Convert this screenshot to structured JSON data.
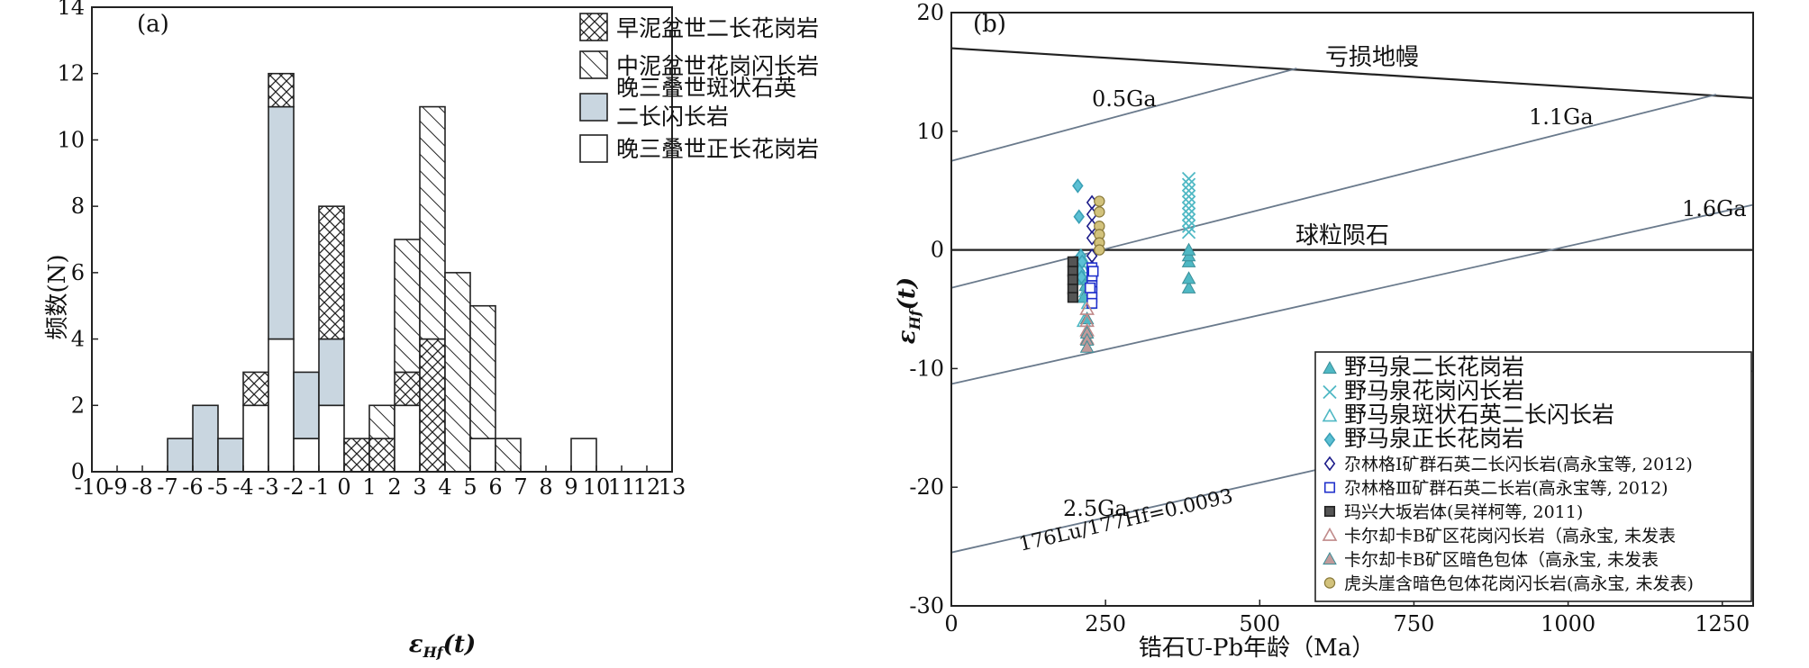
{
  "chart_data": [
    {
      "type": "bar",
      "panel": "(a)",
      "xlabel_main": "ε",
      "xlabel_sub": "Hf",
      "xlabel_suffix": "(t)",
      "ylabel": "频数(N)",
      "xlim": [
        -10,
        13
      ],
      "ylim": [
        0,
        14
      ],
      "x_ticks": [
        -10,
        -9,
        -8,
        -7,
        -6,
        -5,
        -4,
        -3,
        -2,
        -1,
        0,
        1,
        2,
        3,
        4,
        5,
        6,
        7,
        8,
        9,
        10,
        11,
        12,
        13
      ],
      "y_ticks": [
        0,
        2,
        4,
        6,
        8,
        10,
        12,
        14
      ],
      "legend": [
        {
          "label": "早泥盆世二长花岗岩",
          "pattern": "cross"
        },
        {
          "label": "中泥盆世花岗闪长岩",
          "pattern": "hatch"
        },
        {
          "label": "晚三叠世斑状石英",
          "label2": "二长闪长岩",
          "pattern": "fill"
        },
        {
          "label": "晚三叠世正长花岗岩",
          "pattern": "empty"
        }
      ],
      "bars": [
        {
          "x0": -7,
          "x1": -6,
          "y0": 0,
          "y1": 1,
          "pattern": "fill"
        },
        {
          "x0": -6,
          "x1": -5,
          "y0": 0,
          "y1": 2,
          "pattern": "fill"
        },
        {
          "x0": -5,
          "x1": -4,
          "y0": 0,
          "y1": 1,
          "pattern": "fill"
        },
        {
          "x0": -4,
          "x1": -3,
          "y0": 0,
          "y1": 2,
          "pattern": "empty"
        },
        {
          "x0": -4,
          "x1": -3,
          "y0": 2,
          "y1": 3,
          "pattern": "cross"
        },
        {
          "x0": -3,
          "x1": -2,
          "y0": 0,
          "y1": 4,
          "pattern": "empty"
        },
        {
          "x0": -3,
          "x1": -2,
          "y0": 4,
          "y1": 11,
          "pattern": "fill"
        },
        {
          "x0": -3,
          "x1": -2,
          "y0": 11,
          "y1": 12,
          "pattern": "cross"
        },
        {
          "x0": -2,
          "x1": -1,
          "y0": 0,
          "y1": 1,
          "pattern": "empty"
        },
        {
          "x0": -2,
          "x1": -1,
          "y0": 1,
          "y1": 3,
          "pattern": "fill"
        },
        {
          "x0": -1,
          "x1": 0,
          "y0": 0,
          "y1": 2,
          "pattern": "empty"
        },
        {
          "x0": -1,
          "x1": 0,
          "y0": 2,
          "y1": 4,
          "pattern": "fill"
        },
        {
          "x0": -1,
          "x1": 0,
          "y0": 4,
          "y1": 8,
          "pattern": "cross"
        },
        {
          "x0": 0,
          "x1": 1,
          "y0": 0,
          "y1": 1,
          "pattern": "cross"
        },
        {
          "x0": 1,
          "x1": 2,
          "y0": 0,
          "y1": 1,
          "pattern": "cross"
        },
        {
          "x0": 1,
          "x1": 2,
          "y0": 1,
          "y1": 2,
          "pattern": "hatch"
        },
        {
          "x0": 2,
          "x1": 3,
          "y0": 0,
          "y1": 2,
          "pattern": "empty"
        },
        {
          "x0": 2,
          "x1": 3,
          "y0": 2,
          "y1": 3,
          "pattern": "cross"
        },
        {
          "x0": 2,
          "x1": 3,
          "y0": 3,
          "y1": 7,
          "pattern": "hatch"
        },
        {
          "x0": 3,
          "x1": 4,
          "y0": 0,
          "y1": 4,
          "pattern": "cross"
        },
        {
          "x0": 3,
          "x1": 4,
          "y0": 4,
          "y1": 11,
          "pattern": "hatch"
        },
        {
          "x0": 4,
          "x1": 5,
          "y0": 0,
          "y1": 6,
          "pattern": "hatch"
        },
        {
          "x0": 5,
          "x1": 6,
          "y0": 0,
          "y1": 1,
          "pattern": "empty"
        },
        {
          "x0": 5,
          "x1": 6,
          "y0": 1,
          "y1": 5,
          "pattern": "hatch"
        },
        {
          "x0": 6,
          "x1": 7,
          "y0": 0,
          "y1": 1,
          "pattern": "hatch"
        },
        {
          "x0": 9,
          "x1": 10,
          "y0": 0,
          "y1": 1,
          "pattern": "empty"
        }
      ]
    },
    {
      "type": "scatter",
      "panel": "(b)",
      "xlabel": "锆石U-Pb年龄（Ma）",
      "ylabel_main": "ε",
      "ylabel_sub": "Hf",
      "ylabel_suffix": "(t)",
      "xlim": [
        0,
        1300
      ],
      "ylim": [
        -30,
        20
      ],
      "x_ticks": [
        0,
        250,
        500,
        750,
        1000,
        1250
      ],
      "y_ticks": [
        -30,
        -20,
        -10,
        0,
        10,
        20
      ],
      "reference_lines": [
        {
          "label": "亏损地幔",
          "x": [
            0,
            1300
          ],
          "y": [
            17,
            12.8
          ]
        },
        {
          "label": "球粒陨石",
          "x": [
            0,
            1300
          ],
          "y": [
            0,
            0
          ]
        },
        {
          "label": "0.5Ga",
          "x": [
            0,
            560
          ],
          "y": [
            7.5,
            15.3
          ]
        },
        {
          "label": "1.1Ga",
          "x": [
            0,
            1240
          ],
          "y": [
            -3.2,
            13.1
          ]
        },
        {
          "label": "1.6Ga",
          "x": [
            0,
            1300
          ],
          "y": [
            -11.3,
            3.8
          ]
        },
        {
          "label": "2.5Ga",
          "label2": "176Lu/177Hf=0.0093",
          "x": [
            0,
            1300
          ],
          "y": [
            -25.5,
            -10.2
          ]
        }
      ],
      "series": [
        {
          "name": "野马泉二长花岗岩",
          "marker": "triangle",
          "color": "#4fb8c4",
          "points": [
            [
              385,
              -3.2
            ],
            [
              385,
              -2.4
            ],
            [
              385,
              -1
            ],
            [
              385,
              -0.5
            ],
            [
              385,
              0
            ],
            [
              215,
              -4
            ],
            [
              218,
              -3
            ],
            [
              212,
              -2.5
            ],
            [
              220,
              -5.8
            ]
          ]
        },
        {
          "name": "野马泉花岗闪长岩",
          "marker": "x",
          "color": "#4fb8c4",
          "points": [
            [
              385,
              6
            ],
            [
              385,
              5.5
            ],
            [
              385,
              5
            ],
            [
              385,
              4.5
            ],
            [
              385,
              4
            ],
            [
              385,
              3.5
            ],
            [
              385,
              3
            ],
            [
              385,
              2.5
            ],
            [
              385,
              2
            ],
            [
              385,
              1.5
            ]
          ]
        },
        {
          "name": "野马泉斑状石英二长闪长岩",
          "marker": "triangle-open",
          "color": "#4fb8c4",
          "points": [
            [
              212,
              -1.5
            ],
            [
              215,
              -1
            ],
            [
              210,
              -2
            ],
            [
              218,
              -3.5
            ],
            [
              222,
              -4.5
            ],
            [
              215,
              -6
            ]
          ]
        },
        {
          "name": "野马泉正长花岗岩",
          "marker": "diamond",
          "color": "#5cc0d4",
          "points": [
            [
              205,
              5.4
            ],
            [
              207,
              2.8
            ],
            [
              210,
              -0.5
            ],
            [
              212,
              -1
            ],
            [
              208,
              -1.8
            ],
            [
              211,
              -2.3
            ]
          ]
        },
        {
          "name": "尕林格Ⅰ矿群石英二长闪长岩(高永宝等, 2012)",
          "marker": "diamond-open",
          "color": "#1d1d8a",
          "points": [
            [
              228,
              4
            ],
            [
              228,
              3
            ],
            [
              228,
              2
            ],
            [
              228,
              1
            ],
            [
              228,
              -0.5
            ],
            [
              228,
              -1.5
            ]
          ]
        },
        {
          "name": "尕林格Ⅲ矿群石英二长岩(高永宝等, 2012)",
          "marker": "square-open",
          "color": "#2233cc",
          "points": [
            [
              228,
              -1.5
            ],
            [
              228,
              -2
            ],
            [
              228,
              -2.5
            ],
            [
              228,
              -3
            ],
            [
              228,
              -3.5
            ],
            [
              228,
              -4
            ],
            [
              228,
              -4.5
            ],
            [
              228,
              -2.2
            ],
            [
              225,
              -3.2
            ],
            [
              230,
              -1.8
            ]
          ]
        },
        {
          "name": "玛兴大坂岩体(吴祥柯等, 2011)",
          "marker": "square",
          "color": "#555555",
          "points": [
            [
              197,
              -1
            ],
            [
              197,
              -1.8
            ],
            [
              197,
              -2.5
            ],
            [
              197,
              -3.3
            ],
            [
              197,
              -4
            ]
          ]
        },
        {
          "name": "卡尔却卡B矿区花岗闪长岩（高永宝, 未发表",
          "marker": "triangle-open",
          "color": "#c08a8a",
          "points": [
            [
              220,
              -5
            ],
            [
              220,
              -6
            ],
            [
              220,
              -6.8
            ],
            [
              220,
              -7.5
            ]
          ]
        },
        {
          "name": "卡尔却卡B矿区暗色包体（高永宝, 未发表",
          "marker": "triangle",
          "color": "#c09a9a",
          "points": [
            [
              220,
              -7
            ],
            [
              220,
              -7.6
            ],
            [
              220,
              -8.2
            ]
          ]
        },
        {
          "name": "虎头崖含暗色包体花岗闪长岩(高永宝, 未发表)",
          "marker": "circle",
          "color": "#d2c27c",
          "points": [
            [
              240,
              4.1
            ],
            [
              240,
              3.2
            ],
            [
              240,
              2
            ],
            [
              240,
              1.3
            ],
            [
              240,
              0.6
            ],
            [
              240,
              0
            ]
          ]
        }
      ]
    }
  ]
}
